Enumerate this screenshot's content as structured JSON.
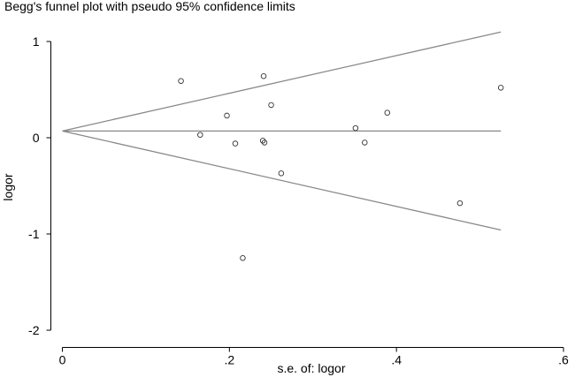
{
  "chart_data": {
    "type": "scatter",
    "title": "Begg's funnel plot with pseudo 95% confidence limits",
    "xlabel": "s.e. of: logor",
    "ylabel": "logor",
    "xlim": [
      0,
      0.6
    ],
    "ylim": [
      -2,
      1
    ],
    "xticks": [
      0,
      0.2,
      0.4,
      0.6
    ],
    "xtick_labels": [
      "0",
      ".2",
      ".4",
      ".6"
    ],
    "yticks": [
      1,
      0,
      -1,
      -2
    ],
    "ytick_labels": [
      "1",
      "0",
      "-1",
      "-2"
    ],
    "pooled_estimate": 0.07,
    "funnel_max_se": 0.525,
    "points": [
      {
        "x": 0.142,
        "y": 0.59
      },
      {
        "x": 0.165,
        "y": 0.03
      },
      {
        "x": 0.197,
        "y": 0.23
      },
      {
        "x": 0.207,
        "y": -0.06
      },
      {
        "x": 0.216,
        "y": -1.25
      },
      {
        "x": 0.24,
        "y": -0.03
      },
      {
        "x": 0.241,
        "y": 0.64
      },
      {
        "x": 0.242,
        "y": -0.05
      },
      {
        "x": 0.25,
        "y": 0.34
      },
      {
        "x": 0.262,
        "y": -0.37
      },
      {
        "x": 0.351,
        "y": 0.1
      },
      {
        "x": 0.362,
        "y": -0.05
      },
      {
        "x": 0.389,
        "y": 0.26
      },
      {
        "x": 0.476,
        "y": -0.68
      },
      {
        "x": 0.525,
        "y": 0.52
      }
    ]
  }
}
